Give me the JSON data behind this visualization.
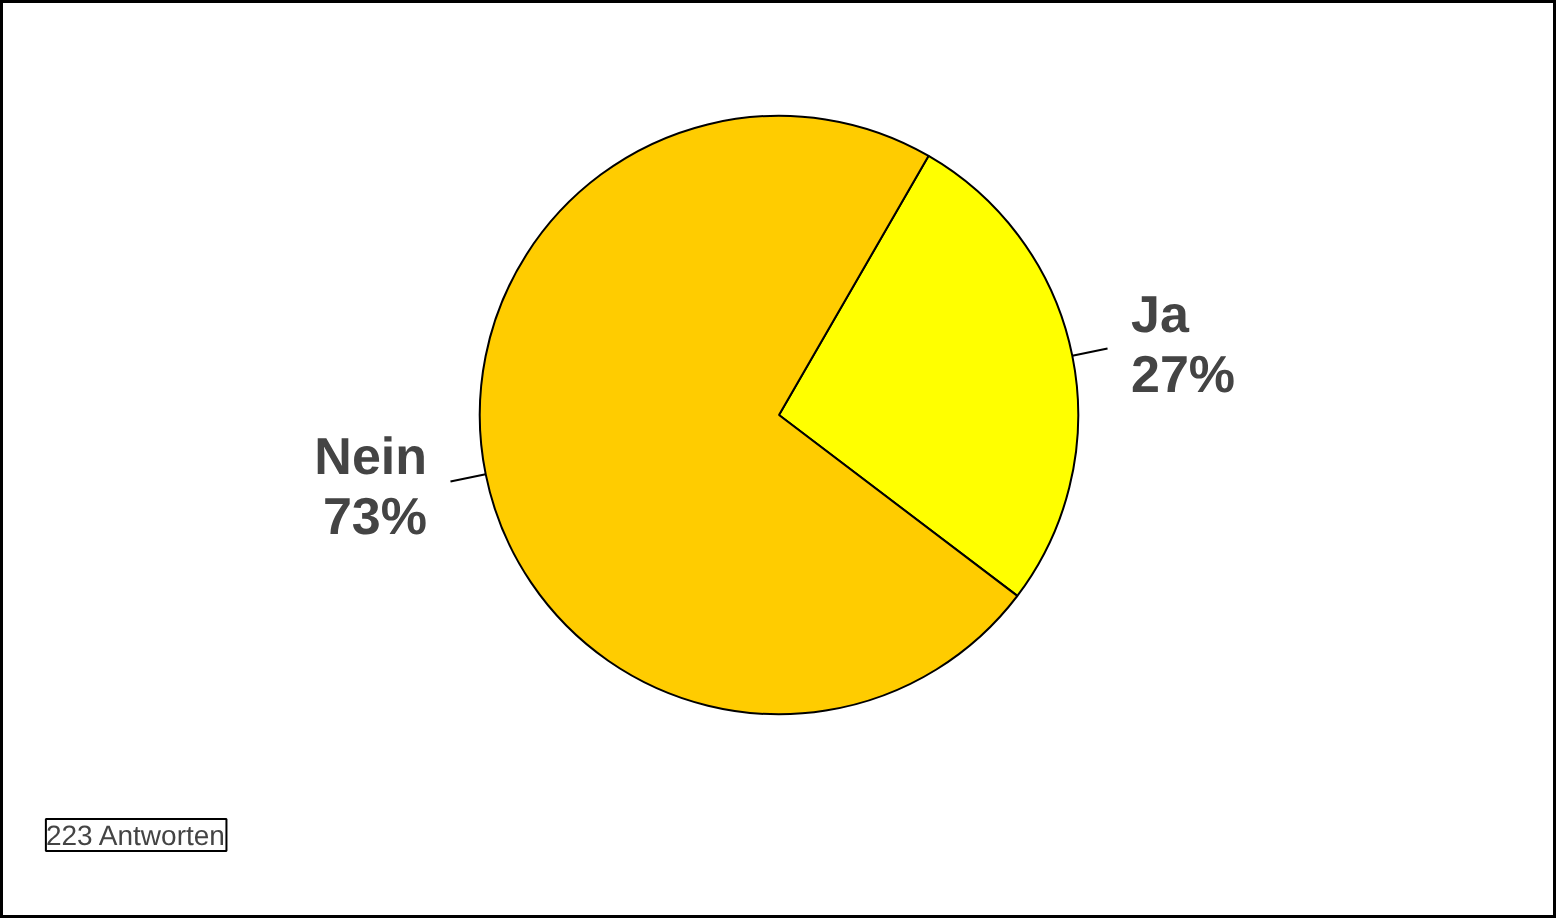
{
  "chart_data": {
    "type": "pie",
    "categories": [
      "Ja",
      "Nein"
    ],
    "values": [
      27,
      73
    ],
    "value_labels": [
      "27%",
      "73%"
    ],
    "colors": [
      "#ffff00",
      "#ffcc00"
    ],
    "annotations": [
      "223 Antworten"
    ]
  }
}
